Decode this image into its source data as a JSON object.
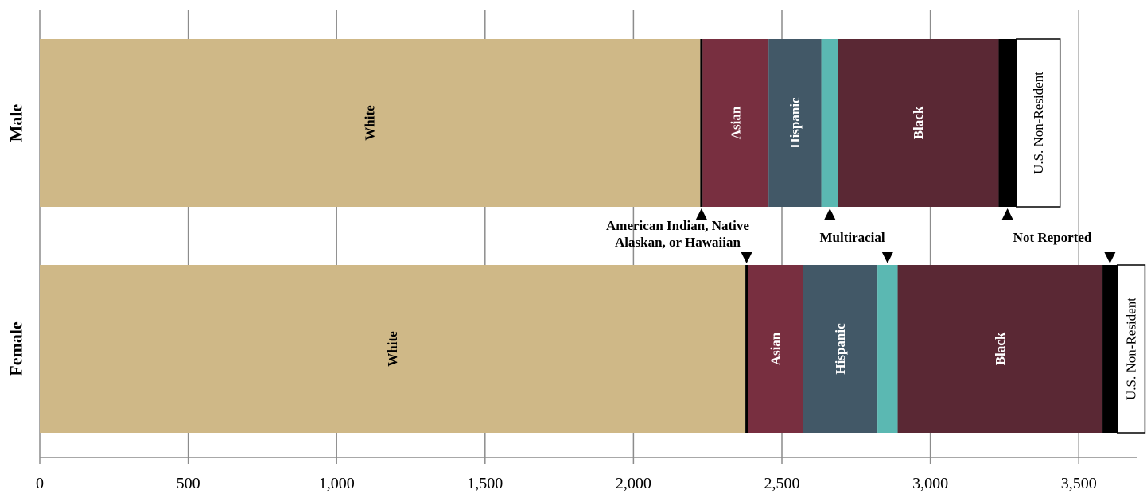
{
  "chart_data": {
    "type": "bar",
    "orientation": "horizontal",
    "stacked": true,
    "categories": [
      "Male",
      "Female"
    ],
    "series": [
      {
        "name": "White",
        "values": [
          2225,
          2377
        ],
        "color": "#CFB887",
        "label_color": "#000000",
        "label_bold": true
      },
      {
        "name": "American Indian, Native Alaskan, or Hawaiian",
        "values": [
          8,
          8
        ],
        "color": "#000000",
        "label_color": "#000000",
        "label_bold": true
      },
      {
        "name": "Asian",
        "values": [
          222,
          187
        ],
        "color": "#782F40",
        "label_color": "#FFFFFF",
        "label_bold": true
      },
      {
        "name": "Hispanic",
        "values": [
          178,
          250
        ],
        "color": "#425867",
        "label_color": "#FFFFFF",
        "label_bold": true
      },
      {
        "name": "Multiracial",
        "values": [
          57,
          68
        ],
        "color": "#5BB8B2",
        "label_color": "#000000",
        "label_bold": true
      },
      {
        "name": "Black",
        "values": [
          540,
          690
        ],
        "color": "#5A2834",
        "label_color": "#FFFFFF",
        "label_bold": true
      },
      {
        "name": "Not Reported",
        "values": [
          60,
          50
        ],
        "color": "#000000",
        "label_color": "#000000",
        "label_bold": true
      },
      {
        "name": "U.S. Non-Resident",
        "values": [
          147,
          93
        ],
        "color": "#FFFFFF",
        "label_color": "#000000",
        "label_bold": false
      }
    ],
    "xlim": [
      0,
      3650
    ],
    "xticks": [
      0,
      500,
      1000,
      1500,
      2000,
      2500,
      3000,
      3500
    ],
    "xtick_labels": [
      "0",
      "500",
      "1,000",
      "1,500",
      "2,000",
      "2,500",
      "3,000",
      "3,500"
    ],
    "grid": "vertical",
    "legend": "none",
    "segment_labels": [
      [
        "White",
        "",
        "Asian",
        "Hispanic",
        "",
        "Black",
        "",
        "U.S. Non-Resident"
      ],
      [
        "White",
        "",
        "Asian",
        "Hispanic",
        "",
        "Black",
        "",
        "U.S. Non-Resident"
      ]
    ],
    "annotations": [
      {
        "lines": [
          "American Indian, Native",
          "Alaskan, or Hawaiian"
        ],
        "series": "American Indian, Native Alaskan, or Hawaiian"
      },
      {
        "lines": [
          "Multiracial"
        ],
        "series": "Multiracial"
      },
      {
        "lines": [
          "Not Reported"
        ],
        "series": "Not Reported"
      }
    ]
  }
}
